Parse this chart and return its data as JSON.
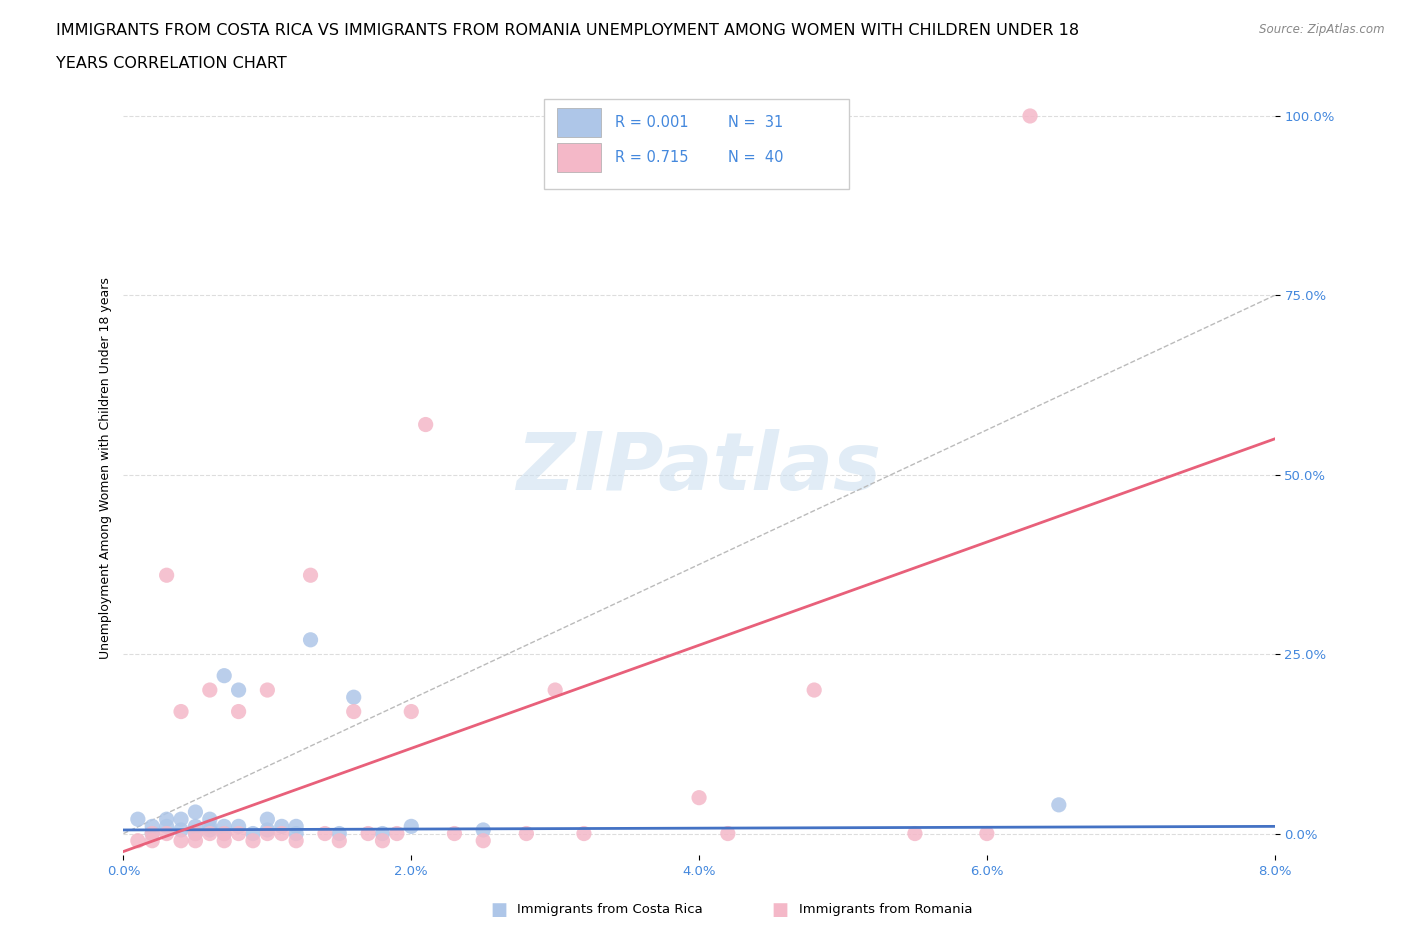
{
  "title_line1": "IMMIGRANTS FROM COSTA RICA VS IMMIGRANTS FROM ROMANIA UNEMPLOYMENT AMONG WOMEN WITH CHILDREN UNDER 18",
  "title_line2": "YEARS CORRELATION CHART",
  "source_text": "Source: ZipAtlas.com",
  "ylabel": "Unemployment Among Women with Children Under 18 years",
  "xlim": [
    0.0,
    0.08
  ],
  "ylim": [
    -0.03,
    1.05
  ],
  "xticks": [
    0.0,
    0.02,
    0.04,
    0.06,
    0.08
  ],
  "xticklabels": [
    "0.0%",
    "2.0%",
    "4.0%",
    "6.0%",
    "8.0%"
  ],
  "yticks": [
    0.0,
    0.25,
    0.5,
    0.75,
    1.0
  ],
  "yticklabels": [
    "0.0%",
    "25.0%",
    "50.0%",
    "75.0%",
    "100.0%"
  ],
  "legend_entries": [
    {
      "label": "Immigrants from Costa Rica",
      "color": "#aec6e8",
      "R": "0.001",
      "N": " 31"
    },
    {
      "label": "Immigrants from Romania",
      "color": "#f4b8c8",
      "R": "0.715",
      "N": " 40"
    }
  ],
  "costa_rica_color": "#aec6e8",
  "romania_color": "#f4b8c8",
  "costa_rica_line_color": "#4472c4",
  "romania_line_color": "#e8607a",
  "ref_line_color": "#bbbbbb",
  "watermark": "ZIPatlas",
  "watermark_color": "#cde0f0",
  "costa_rica_points_x": [
    0.001,
    0.002,
    0.002,
    0.003,
    0.003,
    0.004,
    0.004,
    0.005,
    0.005,
    0.005,
    0.006,
    0.006,
    0.006,
    0.007,
    0.007,
    0.007,
    0.008,
    0.008,
    0.009,
    0.01,
    0.01,
    0.011,
    0.012,
    0.012,
    0.013,
    0.015,
    0.016,
    0.018,
    0.02,
    0.025,
    0.065
  ],
  "costa_rica_points_y": [
    0.02,
    0.0,
    0.01,
    0.01,
    0.02,
    0.005,
    0.02,
    0.0,
    0.01,
    0.03,
    0.005,
    0.01,
    0.02,
    0.0,
    0.01,
    0.22,
    0.01,
    0.2,
    0.0,
    0.005,
    0.02,
    0.01,
    0.0,
    0.01,
    0.27,
    0.0,
    0.19,
    0.0,
    0.01,
    0.005,
    0.04
  ],
  "romania_points_x": [
    0.001,
    0.002,
    0.002,
    0.003,
    0.003,
    0.004,
    0.004,
    0.005,
    0.005,
    0.006,
    0.006,
    0.007,
    0.007,
    0.008,
    0.008,
    0.009,
    0.01,
    0.01,
    0.011,
    0.012,
    0.013,
    0.014,
    0.015,
    0.016,
    0.017,
    0.018,
    0.019,
    0.02,
    0.021,
    0.023,
    0.025,
    0.028,
    0.03,
    0.032,
    0.04,
    0.042,
    0.048,
    0.055,
    0.06,
    0.063
  ],
  "romania_points_y": [
    -0.01,
    0.0,
    -0.01,
    0.0,
    0.36,
    -0.01,
    0.17,
    0.0,
    -0.01,
    0.0,
    0.2,
    0.0,
    -0.01,
    0.17,
    0.0,
    -0.01,
    0.0,
    0.2,
    0.0,
    -0.01,
    0.36,
    0.0,
    -0.01,
    0.17,
    0.0,
    -0.01,
    0.0,
    0.17,
    0.57,
    0.0,
    -0.01,
    0.0,
    0.2,
    0.0,
    0.05,
    0.0,
    0.2,
    0.0,
    0.0,
    1.0
  ],
  "background_color": "#ffffff",
  "grid_color": "#dddddd",
  "title_fontsize": 11.5,
  "axis_label_fontsize": 9,
  "tick_fontsize": 9.5,
  "legend_fontsize": 10.5
}
